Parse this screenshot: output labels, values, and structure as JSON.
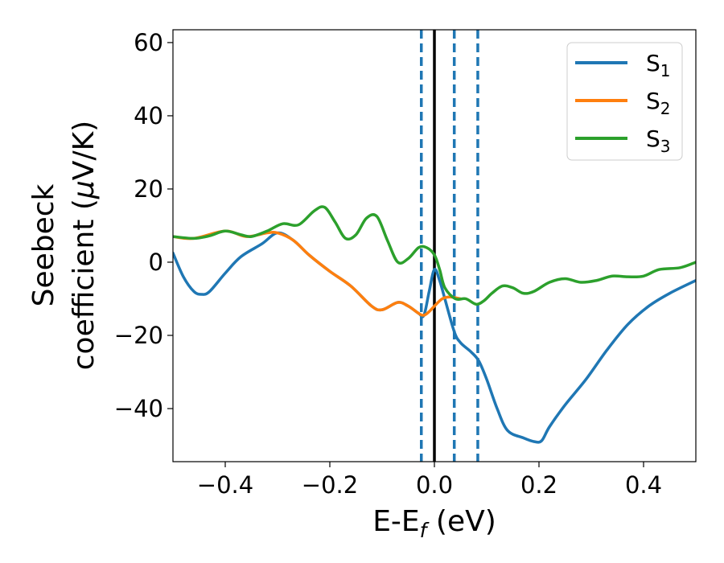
{
  "chart_data": {
    "type": "line",
    "xlabel": "E-E",
    "xlabel_sub": "f",
    "xlabel_unit": " (eV)",
    "ylabel_line1": "Seebeck",
    "ylabel_line2_pre": "coefficient  (",
    "ylabel_line2_mu": "μ",
    "ylabel_line2_post": "V/K)",
    "xlim": [
      -0.5,
      0.5
    ],
    "ylim": [
      -54.5,
      63.5
    ],
    "xticks": [
      -0.4,
      -0.2,
      0.0,
      0.2,
      0.4
    ],
    "xtick_labels": [
      "−0.4",
      "−0.2",
      "0.0",
      "0.2",
      "0.4"
    ],
    "yticks": [
      -40,
      -20,
      0,
      20,
      40,
      60
    ],
    "ytick_labels": [
      "−40",
      "−20",
      "0",
      "20",
      "40",
      "60"
    ],
    "grid": false,
    "legend_position": "top-right",
    "vlines": [
      {
        "x": 0.0,
        "style": "solid",
        "color": "#000000"
      },
      {
        "x": -0.025,
        "style": "dashed",
        "color": "#1f77b4"
      },
      {
        "x": 0.038,
        "style": "dashed",
        "color": "#1f77b4"
      },
      {
        "x": 0.083,
        "style": "dashed",
        "color": "#1f77b4"
      }
    ],
    "series": [
      {
        "name": "S",
        "sub": "1",
        "color": "#1f77b4",
        "points": [
          [
            -0.5,
            2.5
          ],
          [
            -0.48,
            -4
          ],
          [
            -0.46,
            -8
          ],
          [
            -0.445,
            -8.8
          ],
          [
            -0.43,
            -8
          ],
          [
            -0.4,
            -3
          ],
          [
            -0.37,
            1.5
          ],
          [
            -0.33,
            5
          ],
          [
            -0.3,
            8
          ],
          [
            -0.27,
            6
          ],
          [
            -0.24,
            2
          ],
          [
            -0.2,
            -2.5
          ],
          [
            -0.16,
            -6.5
          ],
          [
            -0.12,
            -12
          ],
          [
            -0.1,
            -13
          ],
          [
            -0.07,
            -11
          ],
          [
            -0.05,
            -12
          ],
          [
            -0.03,
            -14
          ],
          [
            -0.02,
            -14.5
          ],
          [
            -0.01,
            -8
          ],
          [
            0.0,
            -2
          ],
          [
            0.01,
            -5
          ],
          [
            0.02,
            -10
          ],
          [
            0.038,
            -19
          ],
          [
            0.05,
            -22
          ],
          [
            0.07,
            -24.5
          ],
          [
            0.085,
            -27
          ],
          [
            0.1,
            -32
          ],
          [
            0.12,
            -40
          ],
          [
            0.14,
            -46
          ],
          [
            0.17,
            -48
          ],
          [
            0.19,
            -49
          ],
          [
            0.205,
            -48.8
          ],
          [
            0.22,
            -45
          ],
          [
            0.25,
            -39
          ],
          [
            0.29,
            -32
          ],
          [
            0.33,
            -24
          ],
          [
            0.37,
            -17
          ],
          [
            0.41,
            -12
          ],
          [
            0.45,
            -8.5
          ],
          [
            0.5,
            -5
          ]
        ]
      },
      {
        "name": "S",
        "sub": "2",
        "color": "#ff7f0e",
        "points": [
          [
            -0.5,
            7
          ],
          [
            -0.46,
            6.5
          ],
          [
            -0.4,
            8.5
          ],
          [
            -0.36,
            7
          ],
          [
            -0.32,
            8
          ],
          [
            -0.3,
            8
          ],
          [
            -0.27,
            6
          ],
          [
            -0.24,
            2
          ],
          [
            -0.2,
            -2.5
          ],
          [
            -0.16,
            -6.5
          ],
          [
            -0.12,
            -12
          ],
          [
            -0.1,
            -13
          ],
          [
            -0.07,
            -11
          ],
          [
            -0.05,
            -12
          ],
          [
            -0.03,
            -14
          ],
          [
            -0.02,
            -14.5
          ],
          [
            -0.01,
            -13.5
          ],
          [
            0.0,
            -12
          ],
          [
            0.015,
            -10
          ],
          [
            0.03,
            -9.5
          ],
          [
            0.05,
            -10
          ]
        ]
      },
      {
        "name": "S",
        "sub": "3",
        "color": "#2ca02c",
        "points": [
          [
            -0.5,
            7
          ],
          [
            -0.46,
            6.5
          ],
          [
            -0.43,
            7.2
          ],
          [
            -0.4,
            8.5
          ],
          [
            -0.37,
            7.5
          ],
          [
            -0.35,
            7
          ],
          [
            -0.32,
            8.5
          ],
          [
            -0.29,
            10.5
          ],
          [
            -0.26,
            10.2
          ],
          [
            -0.23,
            14
          ],
          [
            -0.21,
            15
          ],
          [
            -0.19,
            11
          ],
          [
            -0.17,
            6.5
          ],
          [
            -0.15,
            7.5
          ],
          [
            -0.13,
            12
          ],
          [
            -0.11,
            12.5
          ],
          [
            -0.09,
            6
          ],
          [
            -0.07,
            0
          ],
          [
            -0.05,
            1
          ],
          [
            -0.03,
            4
          ],
          [
            -0.015,
            4
          ],
          [
            0.0,
            2
          ],
          [
            0.01,
            -2
          ],
          [
            0.02,
            -7
          ],
          [
            0.04,
            -10
          ],
          [
            0.06,
            -10
          ],
          [
            0.08,
            -11.5
          ],
          [
            0.095,
            -10.5
          ],
          [
            0.11,
            -8.5
          ],
          [
            0.13,
            -6.5
          ],
          [
            0.15,
            -7
          ],
          [
            0.17,
            -8.5
          ],
          [
            0.19,
            -8
          ],
          [
            0.22,
            -5.5
          ],
          [
            0.25,
            -4.5
          ],
          [
            0.28,
            -5.5
          ],
          [
            0.31,
            -5
          ],
          [
            0.34,
            -3.8
          ],
          [
            0.37,
            -4
          ],
          [
            0.4,
            -3.8
          ],
          [
            0.43,
            -2
          ],
          [
            0.47,
            -1.5
          ],
          [
            0.5,
            0
          ]
        ]
      }
    ]
  }
}
